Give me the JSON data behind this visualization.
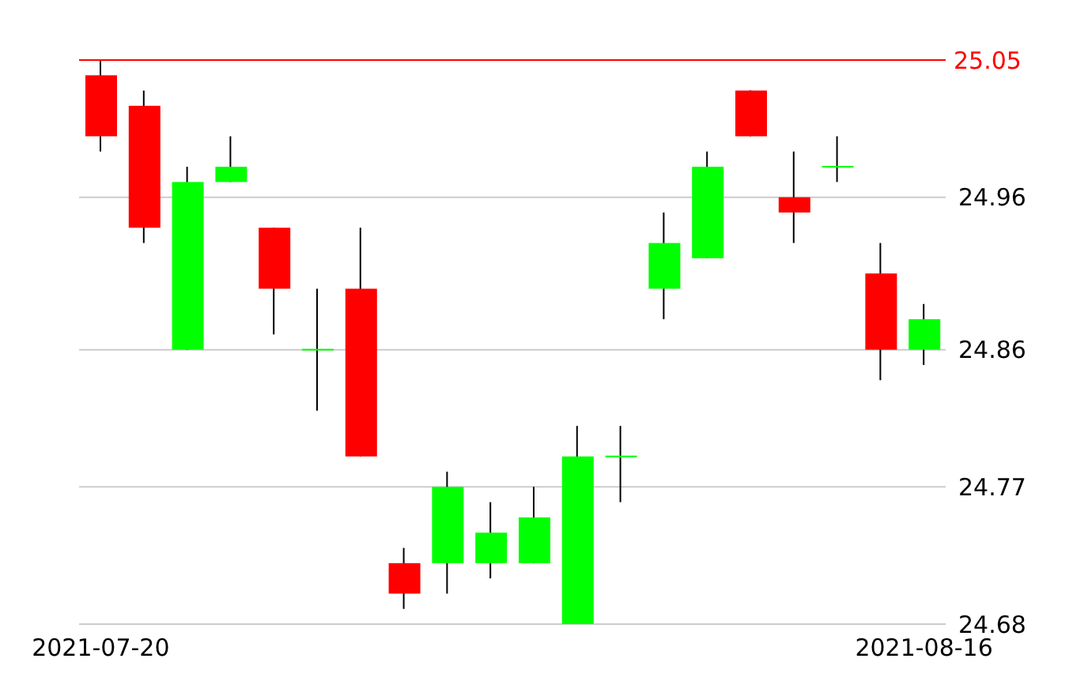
{
  "chart_data": {
    "type": "candlestick",
    "categories": [
      "2021-07-20",
      null,
      null,
      null,
      null,
      null,
      null,
      null,
      null,
      null,
      null,
      null,
      null,
      null,
      null,
      null,
      null,
      null,
      null,
      "2021-08-16"
    ],
    "ohlc": [
      [
        25.04,
        25.05,
        24.99,
        25.0
      ],
      [
        25.02,
        25.03,
        24.93,
        24.94
      ],
      [
        24.86,
        24.98,
        24.86,
        24.97
      ],
      [
        24.97,
        25.0,
        24.97,
        24.98
      ],
      [
        24.94,
        24.94,
        24.87,
        24.9
      ],
      [
        24.86,
        24.9,
        24.82,
        24.86
      ],
      [
        24.9,
        24.94,
        24.79,
        24.79
      ],
      [
        24.72,
        24.73,
        24.69,
        24.7
      ],
      [
        24.72,
        24.78,
        24.7,
        24.77
      ],
      [
        24.72,
        24.76,
        24.71,
        24.74
      ],
      [
        24.72,
        24.77,
        24.72,
        24.75
      ],
      [
        24.68,
        24.81,
        24.68,
        24.79
      ],
      [
        24.79,
        24.81,
        24.76,
        24.79
      ],
      [
        24.9,
        24.95,
        24.88,
        24.93
      ],
      [
        24.92,
        24.99,
        24.92,
        24.98
      ],
      [
        25.03,
        25.03,
        25.0,
        25.0
      ],
      [
        24.96,
        24.99,
        24.93,
        24.95
      ],
      [
        24.98,
        25.0,
        24.97,
        24.98
      ],
      [
        24.91,
        24.93,
        24.84,
        24.86
      ],
      [
        24.86,
        24.89,
        24.85,
        24.88
      ]
    ],
    "colors": [
      "#ff0000",
      "#ff0000",
      "#00ff00",
      "#00ff00",
      "#ff0000",
      "#00ff00",
      "#ff0000",
      "#ff0000",
      "#00ff00",
      "#00ff00",
      "#00ff00",
      "#00ff00",
      "#00ff00",
      "#00ff00",
      "#00ff00",
      "#ff0000",
      "#ff0000",
      "#00ff00",
      "#ff0000",
      "#00ff00"
    ],
    "ylim": [
      24.68,
      25.05
    ],
    "yticks": [
      24.68,
      24.77,
      24.86,
      24.96
    ],
    "grid": "y",
    "ref_lines": [
      {
        "axis": "y",
        "value": 25.05,
        "label": "25.05",
        "color": "#ff0000"
      }
    ]
  }
}
